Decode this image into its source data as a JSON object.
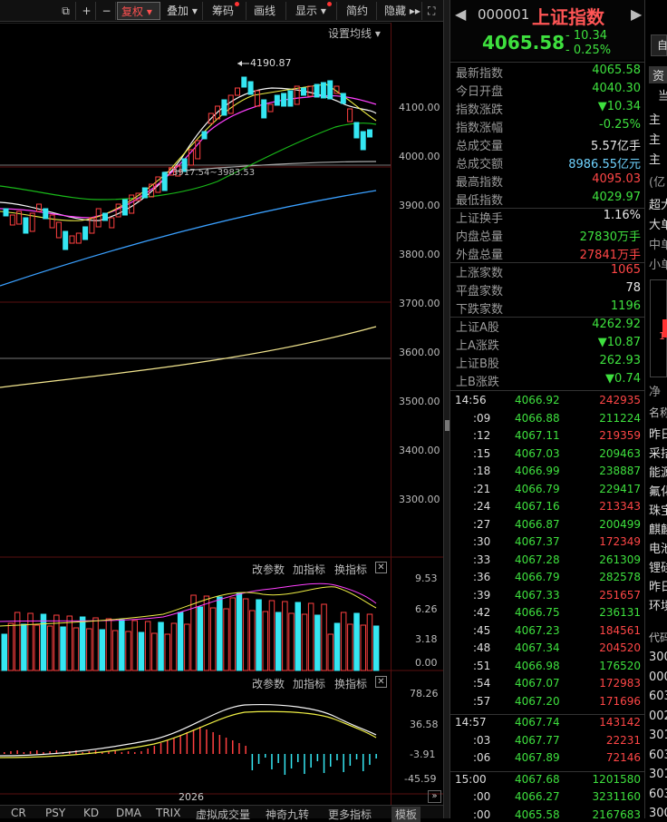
{
  "toolbar": {
    "items": [
      "复权",
      "叠加",
      "筹码",
      "画线",
      "显示",
      "简约",
      "隐藏"
    ]
  },
  "chart_header": {
    "setting": "设置均线"
  },
  "price_axis": [
    "4100.00",
    "4000.00",
    "3900.00",
    "3800.00",
    "3700.00",
    "3600.00",
    "3500.00",
    "3400.00",
    "3300.00"
  ],
  "annotations": {
    "high": "4190.87",
    "range": "3917.54~3983.53"
  },
  "volume_panel": {
    "buttons": [
      "改参数",
      "加指标",
      "换指标"
    ],
    "axis": [
      "9.53",
      "6.26",
      "3.18",
      "0.00"
    ]
  },
  "macd_panel": {
    "buttons": [
      "改参数",
      "加指标",
      "换指标"
    ],
    "axis": [
      "78.26",
      "36.58",
      "-3.91",
      "-45.59"
    ]
  },
  "time_axis": {
    "year": "2026"
  },
  "bottom_tabs": [
    "CR",
    "PSY",
    "KD",
    "DMA",
    "TRIX",
    "虚拟成交量",
    "神奇九转",
    "更多指标",
    "模板"
  ],
  "header": {
    "code": "000001",
    "name": "上证指数",
    "price": "4065.58",
    "change": "- 10.34",
    "change_pct": "- 0.25%",
    "right_btn": "自"
  },
  "stats": [
    {
      "label": "最新指数",
      "value": "4065.58",
      "color": "#3ee03e"
    },
    {
      "label": "今日开盘",
      "value": "4040.30",
      "color": "#3ee03e"
    },
    {
      "label": "指数涨跌",
      "value": "▼10.34",
      "color": "#3ee03e"
    },
    {
      "label": "指数涨幅",
      "value": "-0.25%",
      "color": "#3ee03e"
    },
    {
      "label": "总成交量",
      "value": "5.57亿手",
      "color": "#e8e8e8"
    },
    {
      "label": "总成交额",
      "value": "8986.55亿元",
      "color": "#6fd3ff"
    },
    {
      "label": "最高指数",
      "value": "4095.03",
      "color": "#ff4646"
    },
    {
      "label": "最低指数",
      "value": "4029.97",
      "color": "#3ee03e"
    },
    {
      "label": "上证换手",
      "value": "1.16%",
      "color": "#e8e8e8"
    },
    {
      "label": "内盘总量",
      "value": "27830万手",
      "color": "#3ee03e"
    },
    {
      "label": "外盘总量",
      "value": "27841万手",
      "color": "#ff4646"
    },
    {
      "label": "上涨家数",
      "value": "1065",
      "color": "#ff4646"
    },
    {
      "label": "平盘家数",
      "value": "78",
      "color": "#e8e8e8"
    },
    {
      "label": "下跌家数",
      "value": "1196",
      "color": "#3ee03e"
    },
    {
      "label": "上证A股",
      "value": "4262.92",
      "color": "#3ee03e"
    },
    {
      "label": "上A涨跌",
      "value": "▼10.87",
      "color": "#3ee03e"
    },
    {
      "label": "上证B股",
      "value": "262.93",
      "color": "#3ee03e"
    },
    {
      "label": "上B涨跌",
      "value": "▼0.74",
      "color": "#3ee03e"
    }
  ],
  "ticks": [
    {
      "time": "14:56",
      "price": "4066.92",
      "vol": "242935",
      "vc": "#ff4646"
    },
    {
      "time": ":09",
      "price": "4066.88",
      "vol": "211224",
      "vc": "#3ee03e"
    },
    {
      "time": ":12",
      "price": "4067.11",
      "vol": "219359",
      "vc": "#ff4646"
    },
    {
      "time": ":15",
      "price": "4067.03",
      "vol": "209463",
      "vc": "#3ee03e"
    },
    {
      "time": ":18",
      "price": "4066.99",
      "vol": "238887",
      "vc": "#3ee03e"
    },
    {
      "time": ":21",
      "price": "4066.79",
      "vol": "229417",
      "vc": "#3ee03e"
    },
    {
      "time": ":24",
      "price": "4067.16",
      "vol": "213343",
      "vc": "#ff4646"
    },
    {
      "time": ":27",
      "price": "4066.87",
      "vol": "200499",
      "vc": "#3ee03e"
    },
    {
      "time": ":30",
      "price": "4067.37",
      "vol": "172349",
      "vc": "#ff4646"
    },
    {
      "time": ":33",
      "price": "4067.28",
      "vol": "261309",
      "vc": "#3ee03e"
    },
    {
      "time": ":36",
      "price": "4066.79",
      "vol": "282578",
      "vc": "#3ee03e"
    },
    {
      "time": ":39",
      "price": "4067.33",
      "vol": "251657",
      "vc": "#ff4646"
    },
    {
      "time": ":42",
      "price": "4066.75",
      "vol": "236131",
      "vc": "#3ee03e"
    },
    {
      "time": ":45",
      "price": "4067.23",
      "vol": "184561",
      "vc": "#ff4646"
    },
    {
      "time": ":48",
      "price": "4067.34",
      "vol": "204520",
      "vc": "#ff4646"
    },
    {
      "time": ":51",
      "price": "4066.98",
      "vol": "176520",
      "vc": "#3ee03e"
    },
    {
      "time": ":54",
      "price": "4067.07",
      "vol": "172983",
      "vc": "#ff4646"
    },
    {
      "time": ":57",
      "price": "4067.20",
      "vol": "171696",
      "vc": "#ff4646"
    },
    {
      "time": "14:57",
      "price": "4067.74",
      "vol": "143142",
      "vc": "#ff4646"
    },
    {
      "time": ":03",
      "price": "4067.77",
      "vol": "22231",
      "vc": "#ff4646"
    },
    {
      "time": ":06",
      "price": "4067.89",
      "vol": "72146",
      "vc": "#ff4646"
    },
    {
      "time": "15:00",
      "price": "4067.68",
      "vol": "1201580",
      "vc": "#3ee03e"
    },
    {
      "time": ":00",
      "price": "4066.27",
      "vol": "3231160",
      "vc": "#3ee03e"
    },
    {
      "time": ":00",
      "price": "4065.58",
      "vol": "2167683",
      "vc": "#3ee03e"
    }
  ],
  "far_right": {
    "top": [
      "资",
      "当"
    ],
    "main_rows": [
      "主",
      "主",
      "主"
    ],
    "yi": "(亿",
    "flow": [
      "超大",
      "大单",
      "中单",
      "小单"
    ],
    "small_val": "1",
    "net": "净",
    "list_header": "名称",
    "list": [
      "昨日",
      "采拮",
      "能源",
      "氟化",
      "珠宝",
      "麒麟",
      "电池",
      "锂硅",
      "昨日",
      "环境"
    ],
    "code_header": "代码",
    "codes": [
      "300",
      "000",
      "603",
      "002",
      "301",
      "603",
      "301",
      "603",
      "300"
    ]
  }
}
